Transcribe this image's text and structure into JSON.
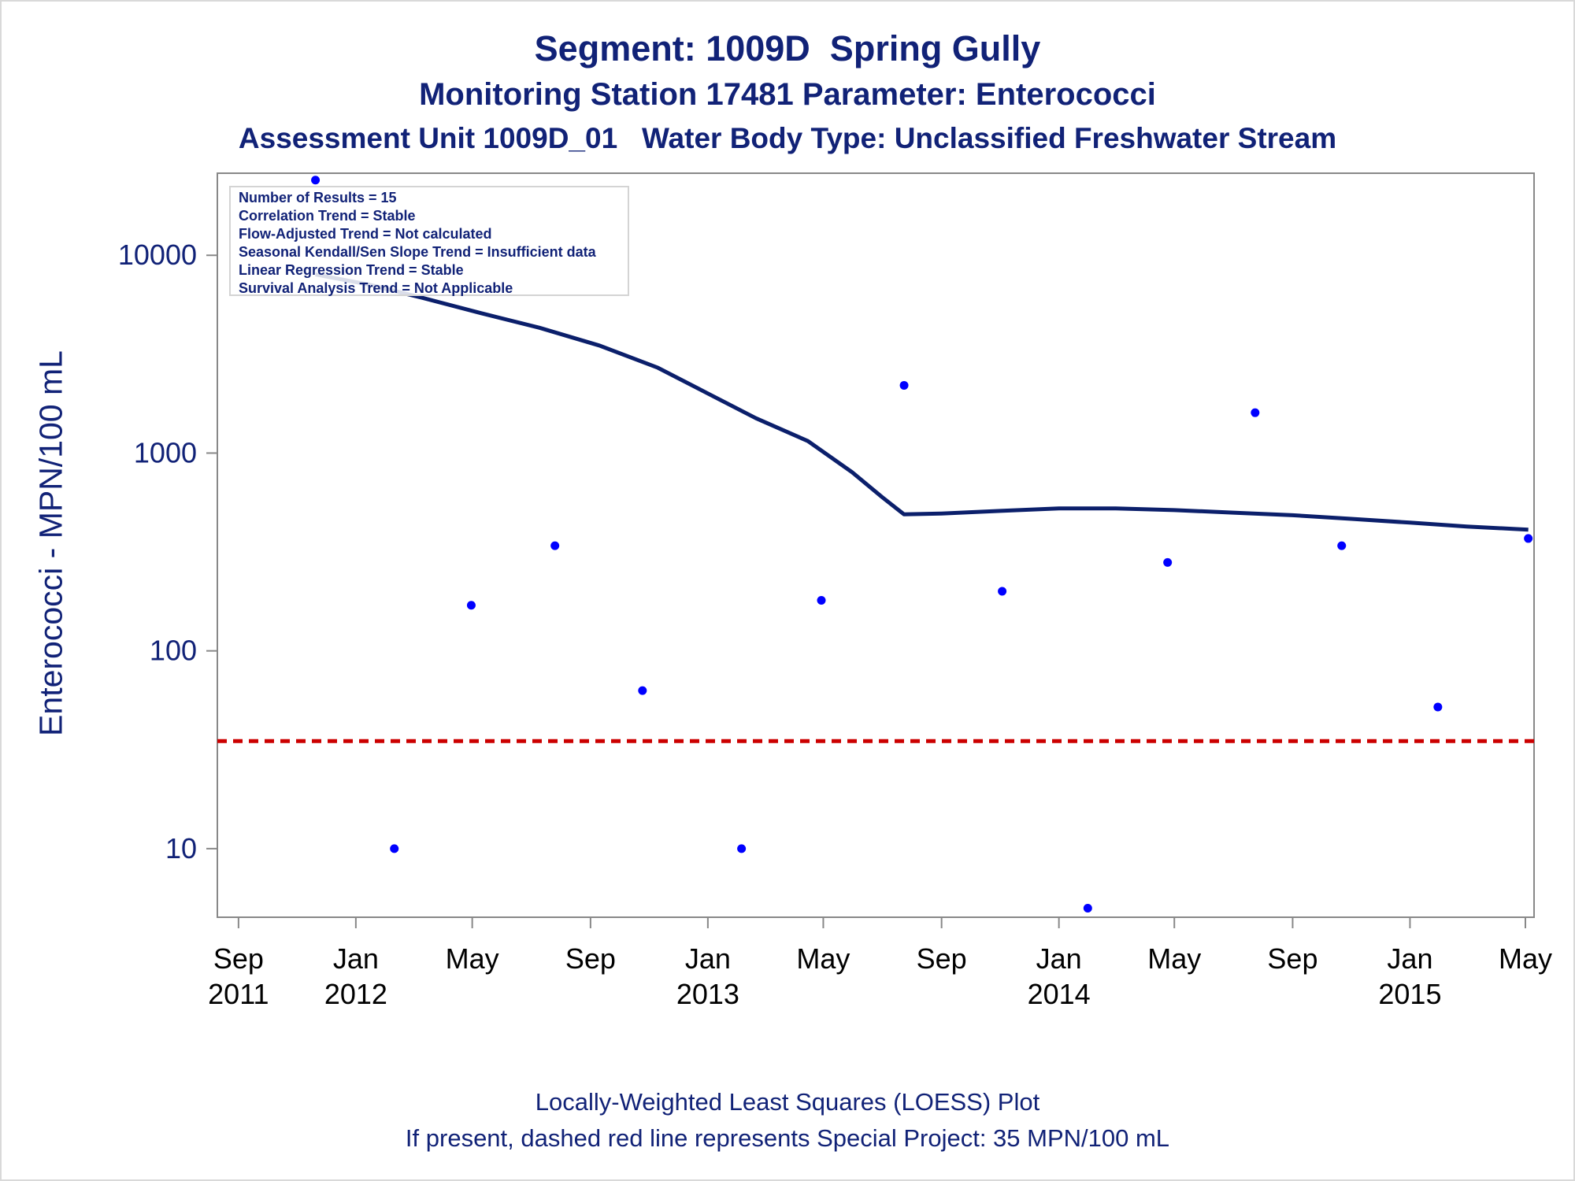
{
  "chart_data": {
    "type": "scatter",
    "title": "Segment: 1009D  Spring Gully",
    "subtitle": "Monitoring Station 17481 Parameter: Enterococci",
    "subtitle2": "Assessment Unit 1009D_01   Water Body Type: Unclassified Freshwater Stream",
    "ylabel": "Enterococci - MPN/100 mL",
    "y_scale": "log",
    "ylim": [
      4.5,
      26000
    ],
    "xlim": [
      "2011-08-10",
      "2015-05-10"
    ],
    "y_ticks": [
      10,
      100,
      1000,
      10000
    ],
    "x_ticks": [
      {
        "date": "2011-09-01",
        "line1": "Sep",
        "line2": "2011"
      },
      {
        "date": "2012-01-01",
        "line1": "Jan",
        "line2": "2012"
      },
      {
        "date": "2012-05-01",
        "line1": "May",
        "line2": ""
      },
      {
        "date": "2012-09-01",
        "line1": "Sep",
        "line2": ""
      },
      {
        "date": "2013-01-01",
        "line1": "Jan",
        "line2": "2013"
      },
      {
        "date": "2013-05-01",
        "line1": "May",
        "line2": ""
      },
      {
        "date": "2013-09-01",
        "line1": "Sep",
        "line2": ""
      },
      {
        "date": "2014-01-01",
        "line1": "Jan",
        "line2": "2014"
      },
      {
        "date": "2014-05-01",
        "line1": "May",
        "line2": ""
      },
      {
        "date": "2014-09-01",
        "line1": "Sep",
        "line2": ""
      },
      {
        "date": "2015-01-01",
        "line1": "Jan",
        "line2": "2015"
      },
      {
        "date": "2015-05-01",
        "line1": "May",
        "line2": ""
      }
    ],
    "points": [
      {
        "x": "2011-11-20",
        "y": 24000
      },
      {
        "x": "2012-02-10",
        "y": 10
      },
      {
        "x": "2012-04-30",
        "y": 170
      },
      {
        "x": "2012-07-26",
        "y": 340
      },
      {
        "x": "2012-10-25",
        "y": 63
      },
      {
        "x": "2013-02-05",
        "y": 10
      },
      {
        "x": "2013-04-29",
        "y": 180
      },
      {
        "x": "2013-07-24",
        "y": 2200
      },
      {
        "x": "2013-11-03",
        "y": 200
      },
      {
        "x": "2014-01-31",
        "y": 5
      },
      {
        "x": "2014-04-24",
        "y": 280
      },
      {
        "x": "2014-07-24",
        "y": 1600
      },
      {
        "x": "2014-10-22",
        "y": 340
      },
      {
        "x": "2015-01-30",
        "y": 52
      },
      {
        "x": "2015-05-04",
        "y": 370
      }
    ],
    "loess": [
      {
        "x": "2011-11-20",
        "y": 8000
      },
      {
        "x": "2012-01-15",
        "y": 7100
      },
      {
        "x": "2012-03-10",
        "y": 6100
      },
      {
        "x": "2012-05-10",
        "y": 5100
      },
      {
        "x": "2012-07-10",
        "y": 4300
      },
      {
        "x": "2012-09-10",
        "y": 3500
      },
      {
        "x": "2012-11-10",
        "y": 2700
      },
      {
        "x": "2013-01-01",
        "y": 2000
      },
      {
        "x": "2013-02-20",
        "y": 1500
      },
      {
        "x": "2013-04-15",
        "y": 1150
      },
      {
        "x": "2013-05-31",
        "y": 800
      },
      {
        "x": "2013-07-01",
        "y": 600
      },
      {
        "x": "2013-07-24",
        "y": 490
      },
      {
        "x": "2013-09-01",
        "y": 495
      },
      {
        "x": "2013-11-01",
        "y": 510
      },
      {
        "x": "2014-01-01",
        "y": 525
      },
      {
        "x": "2014-03-01",
        "y": 525
      },
      {
        "x": "2014-05-01",
        "y": 515
      },
      {
        "x": "2014-07-01",
        "y": 500
      },
      {
        "x": "2014-09-01",
        "y": 485
      },
      {
        "x": "2014-11-01",
        "y": 465
      },
      {
        "x": "2015-01-01",
        "y": 445
      },
      {
        "x": "2015-03-01",
        "y": 425
      },
      {
        "x": "2015-05-04",
        "y": 410
      }
    ],
    "reference_line": {
      "y": 35
    },
    "colors": {
      "points": "#0000ff",
      "loess": "#0b1f6b",
      "reference": "#cc0000",
      "axis": "#888888",
      "text": "#112277"
    }
  },
  "legend_lines": [
    "Number of Results = 15",
    "Correlation Trend = Stable",
    "Flow-Adjusted Trend = Not calculated",
    "Seasonal Kendall/Sen Slope Trend = Insufficient data",
    "Linear Regression Trend = Stable",
    "Survival Analysis Trend = Not Applicable"
  ],
  "footnotes": [
    "Locally-Weighted Least Squares (LOESS) Plot",
    "If present, dashed red line represents Special Project: 35 MPN/100 mL"
  ]
}
